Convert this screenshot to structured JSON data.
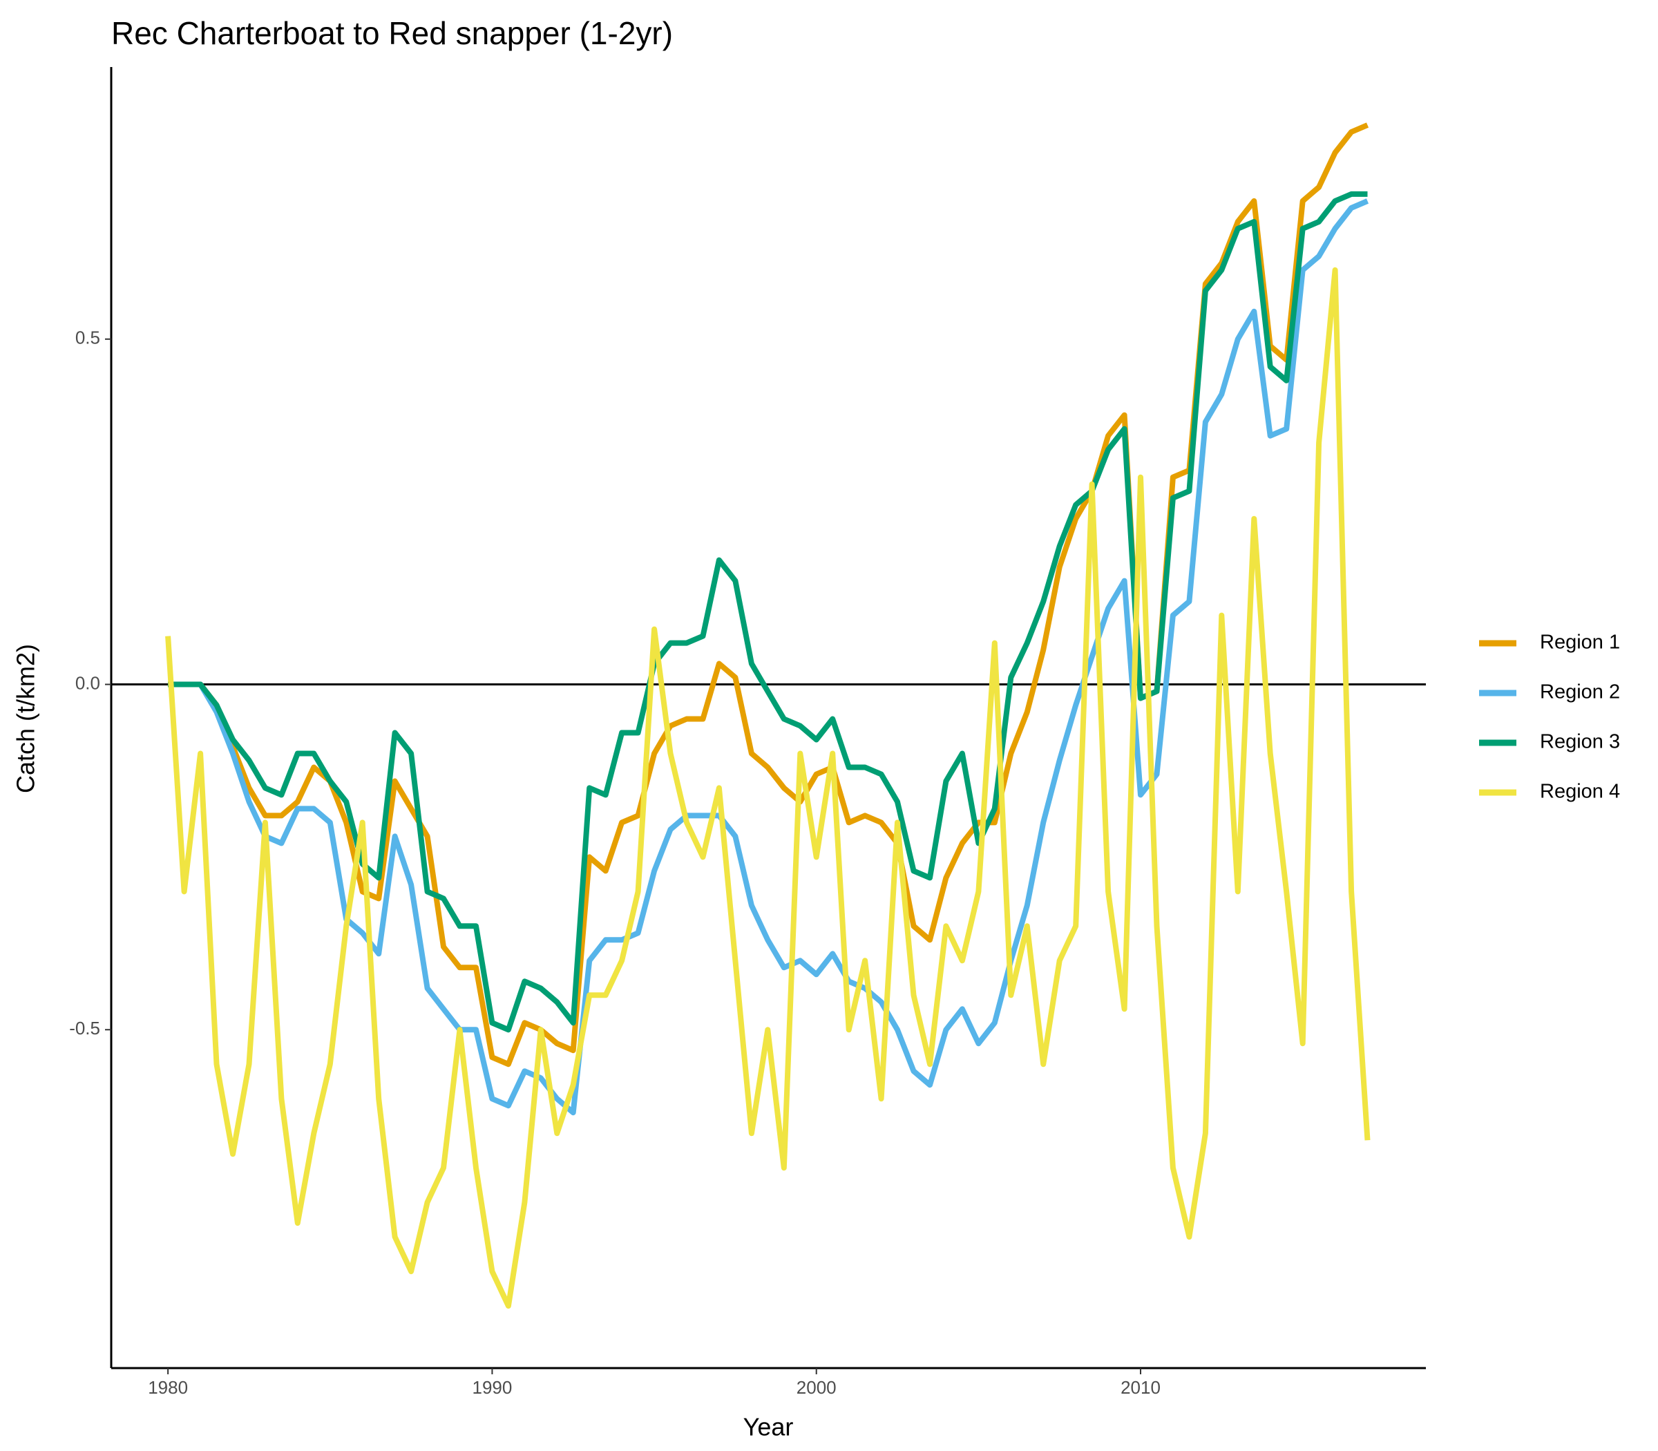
{
  "chart_data": {
    "type": "line",
    "title": "Rec Charterboat to Red snapper (1-2yr)",
    "x_label": "Year",
    "y_label": "Catch (t/km2)",
    "x": [
      1980,
      1980.5,
      1981,
      1981.5,
      1982,
      1982.5,
      1983,
      1983.5,
      1984,
      1984.5,
      1985,
      1985.5,
      1986,
      1986.5,
      1987,
      1987.5,
      1988,
      1988.5,
      1989,
      1989.5,
      1990,
      1990.5,
      1991,
      1991.5,
      1992,
      1992.5,
      1993,
      1993.5,
      1994,
      1994.5,
      1995,
      1995.5,
      1996,
      1996.5,
      1997,
      1997.5,
      1998,
      1998.5,
      1999,
      1999.5,
      2000,
      2000.5,
      2001,
      2001.5,
      2002,
      2002.5,
      2003,
      2003.5,
      2004,
      2004.5,
      2005,
      2005.5,
      2006,
      2006.5,
      2007,
      2007.5,
      2008,
      2008.5,
      2009,
      2009.5,
      2010,
      2010.5,
      2011,
      2011.5,
      2012,
      2012.5,
      2013,
      2013.5,
      2014,
      2014.5,
      2015,
      2015.5,
      2016,
      2016.5,
      2017
    ],
    "series": [
      {
        "name": "Region 1",
        "color": "#E69F00",
        "values": [
          0,
          0,
          0,
          -0.03,
          -0.09,
          -0.15,
          -0.19,
          -0.19,
          -0.17,
          -0.12,
          -0.14,
          -0.2,
          -0.3,
          -0.31,
          -0.14,
          -0.18,
          -0.22,
          -0.38,
          -0.41,
          -0.41,
          -0.54,
          -0.55,
          -0.49,
          -0.5,
          -0.52,
          -0.53,
          -0.25,
          -0.27,
          -0.2,
          -0.19,
          -0.1,
          -0.06,
          -0.05,
          -0.05,
          0.03,
          0.01,
          -0.1,
          -0.12,
          -0.15,
          -0.17,
          -0.13,
          -0.12,
          -0.2,
          -0.19,
          -0.2,
          -0.23,
          -0.35,
          -0.37,
          -0.28,
          -0.23,
          -0.2,
          -0.2,
          -0.1,
          -0.04,
          0.05,
          0.17,
          0.24,
          0.28,
          0.36,
          0.39,
          -0.02,
          -0.01,
          0.3,
          0.31,
          0.58,
          0.61,
          0.67,
          0.7,
          0.49,
          0.47,
          0.7,
          0.72,
          0.77,
          0.8,
          0.81
        ]
      },
      {
        "name": "Region 2",
        "color": "#56B4E9",
        "values": [
          0,
          0,
          0,
          -0.04,
          -0.1,
          -0.17,
          -0.22,
          -0.23,
          -0.18,
          -0.18,
          -0.2,
          -0.34,
          -0.36,
          -0.39,
          -0.22,
          -0.29,
          -0.44,
          -0.47,
          -0.5,
          -0.5,
          -0.6,
          -0.61,
          -0.56,
          -0.57,
          -0.6,
          -0.62,
          -0.4,
          -0.37,
          -0.37,
          -0.36,
          -0.27,
          -0.21,
          -0.19,
          -0.19,
          -0.19,
          -0.22,
          -0.32,
          -0.37,
          -0.41,
          -0.4,
          -0.42,
          -0.39,
          -0.43,
          -0.44,
          -0.46,
          -0.5,
          -0.56,
          -0.58,
          -0.5,
          -0.47,
          -0.52,
          -0.49,
          -0.4,
          -0.32,
          -0.2,
          -0.11,
          -0.03,
          0.04,
          0.11,
          0.15,
          -0.16,
          -0.13,
          0.1,
          0.12,
          0.38,
          0.42,
          0.5,
          0.54,
          0.36,
          0.37,
          0.6,
          0.62,
          0.66,
          0.69,
          0.7
        ]
      },
      {
        "name": "Region 3",
        "color": "#009E73",
        "values": [
          0,
          0,
          0,
          -0.03,
          -0.08,
          -0.11,
          -0.15,
          -0.16,
          -0.1,
          -0.1,
          -0.14,
          -0.17,
          -0.26,
          -0.28,
          -0.07,
          -0.1,
          -0.3,
          -0.31,
          -0.35,
          -0.35,
          -0.49,
          -0.5,
          -0.43,
          -0.44,
          -0.46,
          -0.49,
          -0.15,
          -0.16,
          -0.07,
          -0.07,
          0.03,
          0.06,
          0.06,
          0.07,
          0.18,
          0.15,
          0.03,
          -0.01,
          -0.05,
          -0.06,
          -0.08,
          -0.05,
          -0.12,
          -0.12,
          -0.13,
          -0.17,
          -0.27,
          -0.28,
          -0.14,
          -0.1,
          -0.23,
          -0.18,
          0.01,
          0.06,
          0.12,
          0.2,
          0.26,
          0.28,
          0.34,
          0.37,
          -0.02,
          -0.01,
          0.27,
          0.28,
          0.57,
          0.6,
          0.66,
          0.67,
          0.46,
          0.44,
          0.66,
          0.67,
          0.7,
          0.71,
          0.71
        ]
      },
      {
        "name": "Region 4",
        "color": "#F0E442",
        "values": [
          0.07,
          -0.3,
          -0.1,
          -0.55,
          -0.68,
          -0.55,
          -0.2,
          -0.6,
          -0.78,
          -0.65,
          -0.55,
          -0.35,
          -0.2,
          -0.6,
          -0.8,
          -0.85,
          -0.75,
          -0.7,
          -0.5,
          -0.7,
          -0.85,
          -0.9,
          -0.75,
          -0.5,
          -0.65,
          -0.58,
          -0.45,
          -0.45,
          -0.4,
          -0.3,
          0.08,
          -0.1,
          -0.2,
          -0.25,
          -0.15,
          -0.4,
          -0.65,
          -0.5,
          -0.7,
          -0.1,
          -0.25,
          -0.1,
          -0.5,
          -0.4,
          -0.6,
          -0.2,
          -0.45,
          -0.55,
          -0.35,
          -0.4,
          -0.3,
          0.06,
          -0.45,
          -0.35,
          -0.55,
          -0.4,
          -0.35,
          0.29,
          -0.3,
          -0.47,
          0.3,
          -0.35,
          -0.7,
          -0.8,
          -0.65,
          0.1,
          -0.3,
          0.24,
          -0.1,
          -0.3,
          -0.52,
          0.35,
          0.6,
          -0.3,
          -0.66
        ]
      }
    ],
    "xlim": [
      1978.25,
      2018.8
    ],
    "ylim": [
      -0.99,
      0.894
    ],
    "xticks": [
      1980,
      1990,
      2000,
      2010
    ],
    "yticks": [
      -0.5,
      {
        "value": 0,
        "label": "0.0"
      },
      0.5
    ],
    "hline": 0,
    "grid": false,
    "legend": "right"
  }
}
